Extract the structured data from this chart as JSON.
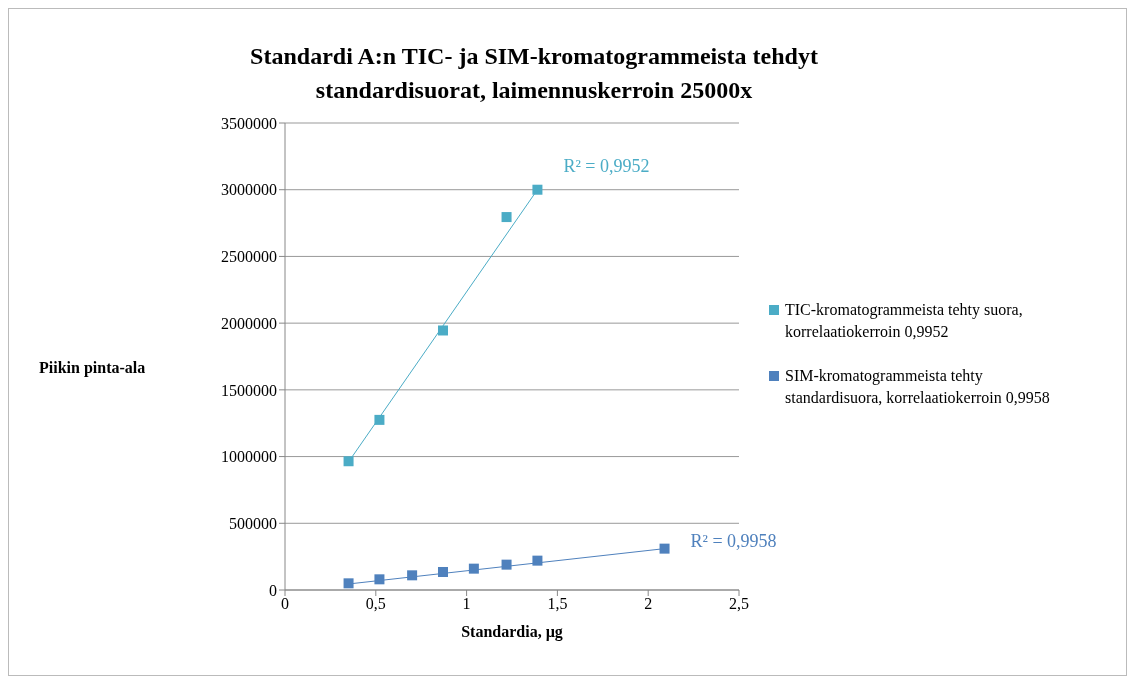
{
  "chart_data": {
    "type": "scatter",
    "title": "Standardi A:n TIC- ja SIM-kromatogrammeista tehdyt standardisuorat, laimennuskerroin 25000x",
    "xlabel": "Standardia, µg",
    "ylabel": "Piikin pinta-ala",
    "xlim": [
      0,
      2.5
    ],
    "xticks": [
      0,
      {
        "value": 0.5,
        "label": "0,5"
      },
      1,
      {
        "value": 1.5,
        "label": "1,5"
      },
      2,
      {
        "value": 2.5,
        "label": "2,5"
      }
    ],
    "ylim": [
      0,
      3500000
    ],
    "yticks": [
      0,
      500000,
      1000000,
      1500000,
      2000000,
      2500000,
      3000000,
      3500000
    ],
    "grid": "y",
    "legend": "right",
    "marker": "square",
    "series": [
      {
        "name": "TIC-kromatogrammeista tehty suora, korrelaatiokerroin 0,9952",
        "color": "#4bacc6",
        "x": [
          0.35,
          0.52,
          0.87,
          1.22,
          1.39
        ],
        "values": [
          965000,
          1275000,
          1945000,
          2795000,
          3000000
        ]
      },
      {
        "name": "SIM-kromatogrammeista tehty standardisuora, korrelaatiokerroin 0,9958",
        "color": "#4f81bd",
        "x": [
          0.35,
          0.52,
          0.7,
          0.87,
          1.04,
          1.22,
          1.39,
          2.09
        ],
        "values": [
          50000,
          80000,
          110000,
          135000,
          160000,
          190000,
          220000,
          310000
        ]
      },
      {
        "type": "line",
        "color": "#4bacc6",
        "marker": "none",
        "x": [
          0.35,
          1.39
        ],
        "values": [
          960000,
          3000000
        ]
      },
      {
        "type": "line",
        "color": "#4f81bd",
        "marker": "none",
        "x": [
          0.35,
          2.09
        ],
        "values": [
          45000,
          310000
        ]
      }
    ],
    "annotations": [
      "R² = 0,9952",
      "R² = 0,9958"
    ]
  }
}
